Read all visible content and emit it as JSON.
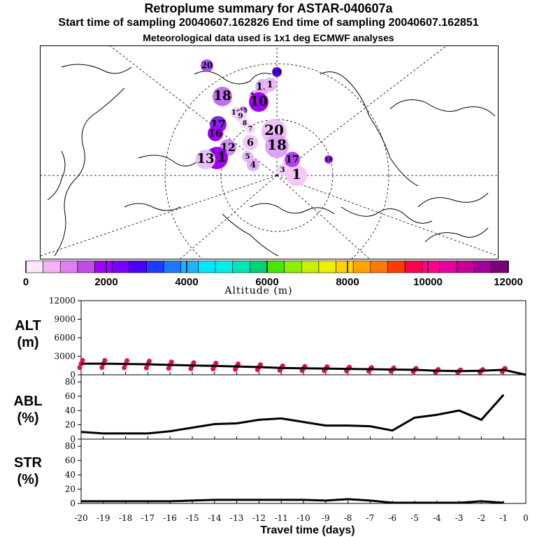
{
  "header": {
    "title": "Retroplume summary for ASTAR-040607a",
    "subtitle": "Start time of sampling 20040607.162826     End time of sampling 20040607.162851",
    "met_line": "Meteorological data used is 1x1 deg ECMWF analyses"
  },
  "colorbar": {
    "label": "Altitude (m)",
    "tick_labels": [
      "0",
      "2000",
      "4000",
      "6000",
      "8000",
      "10000",
      "12000"
    ],
    "range": [
      0,
      12000
    ],
    "colors": [
      "#ffe6ff",
      "#f5b3f5",
      "#e07ff0",
      "#c04ce8",
      "#a000ff",
      "#7a00ff",
      "#4a00ff",
      "#1e3cff",
      "#1e78ff",
      "#1eb4ff",
      "#00e6ff",
      "#00f0e6",
      "#00e6b4",
      "#00d278",
      "#46e600",
      "#8cf000",
      "#c8f000",
      "#f0f000",
      "#ffd200",
      "#ffa500",
      "#ff7800",
      "#ff3c00",
      "#ff0050",
      "#ff008c",
      "#e600a0",
      "#c80096",
      "#a00096",
      "#7a0078"
    ]
  },
  "map": {
    "markers": [
      {
        "label": "20",
        "color": "#a050f0"
      },
      {
        "label": "19",
        "color": "#5a00ff"
      },
      {
        "label": "18",
        "color": "#c070f0"
      },
      {
        "label": "17",
        "color": "#8a20f0"
      },
      {
        "label": "16",
        "color": "#a000ff"
      },
      {
        "label": "15",
        "color": "#c080f0"
      },
      {
        "label": "14",
        "color": "#e0b0f5"
      },
      {
        "label": "13",
        "color": "#e0b0f5"
      },
      {
        "label": "12",
        "color": "#d090f5"
      },
      {
        "label": "11",
        "color": "#a000f0"
      },
      {
        "label": "10",
        "color": "#f0d0fa"
      },
      {
        "label": "9",
        "color": "#f0d0fa"
      },
      {
        "label": "8",
        "color": "#f5d8fa"
      },
      {
        "label": "7",
        "color": "#f5d8fa"
      },
      {
        "label": "6",
        "color": "#f0c8fa"
      },
      {
        "label": "5",
        "color": "#e8b8f5"
      },
      {
        "label": "4",
        "color": "#e0b0f5"
      },
      {
        "label": "3",
        "color": "#f5d0fa"
      },
      {
        "label": "2",
        "color": "#f5d0fa"
      },
      {
        "label": "1",
        "color": "#f5c8fa"
      },
      {
        "label": "10",
        "color": "#a000f0"
      },
      {
        "label": "20",
        "color": "#f0c0fa"
      },
      {
        "label": "18",
        "color": "#e0a0f5"
      },
      {
        "label": "1",
        "color": "#e8b8f5"
      },
      {
        "label": "17",
        "color": "#b040f0"
      },
      {
        "label": "18",
        "color": "#a020f0"
      },
      {
        "label": "13",
        "color": "#e8c0f5"
      }
    ]
  },
  "panels": {
    "alt": {
      "name": "ALT",
      "unit": "(m)"
    },
    "abl": {
      "name": "ABL",
      "unit": "(%)"
    },
    "str": {
      "name": "STR",
      "unit": "(%)"
    }
  },
  "xlabel": "Travel time (days)",
  "chart_data": [
    {
      "type": "line",
      "title": "ALT (m)",
      "xlabel": "Travel time (days)",
      "ylabel": "ALT (m)",
      "x": [
        -20,
        -19,
        -18,
        -17,
        -16,
        -15,
        -14,
        -13,
        -12,
        -11,
        -10,
        -9,
        -8,
        -7,
        -6,
        -5,
        -4,
        -3,
        -2,
        -1,
        0
      ],
      "values": [
        1800,
        1800,
        1750,
        1700,
        1600,
        1500,
        1450,
        1350,
        1250,
        1100,
        1050,
        1000,
        950,
        900,
        850,
        800,
        650,
        600,
        650,
        800,
        0
      ],
      "scatter_extra_labels": [
        "x ticks"
      ],
      "ylim": [
        0,
        12000
      ],
      "yticks": [
        0,
        3000,
        6000,
        9000,
        12000
      ],
      "scatter_color": "#e0104a"
    },
    {
      "type": "line",
      "title": "ABL (%)",
      "ylabel": "ABL (%)",
      "x": [
        -20,
        -19,
        -18,
        -17,
        -16,
        -15,
        -14,
        -13,
        -12,
        -11,
        -10,
        -9,
        -8,
        -7,
        -6,
        -5,
        -4,
        -3,
        -2,
        -1
      ],
      "values": [
        10,
        8,
        8,
        8,
        11,
        16,
        21,
        22,
        27,
        29,
        24,
        19,
        19,
        18,
        12,
        30,
        34,
        40,
        27,
        62
      ],
      "ylim": [
        0,
        90
      ],
      "yticks": [
        0,
        20,
        40,
        60,
        80
      ]
    },
    {
      "type": "line",
      "title": "STR (%)",
      "ylabel": "STR (%)",
      "x": [
        -20,
        -19,
        -18,
        -17,
        -16,
        -15,
        -14,
        -13,
        -12,
        -11,
        -10,
        -9,
        -8,
        -7,
        -6,
        -5,
        -4,
        -3,
        -2,
        -1
      ],
      "values": [
        3,
        3,
        3,
        3,
        3,
        4,
        5,
        5,
        5,
        5,
        5,
        4,
        6,
        4,
        1,
        1,
        1,
        1,
        3,
        1
      ],
      "ylim": [
        0,
        90
      ],
      "yticks": [
        0,
        20,
        40,
        60,
        80
      ]
    }
  ],
  "x_tick_labels": [
    "-20",
    "-19",
    "-18",
    "-17",
    "-16",
    "-15",
    "-14",
    "-13",
    "-12",
    "-11",
    "-10",
    "-9",
    "-8",
    "-7",
    "-6",
    "-5",
    "-4",
    "-3",
    "-2",
    "-1",
    "0"
  ]
}
